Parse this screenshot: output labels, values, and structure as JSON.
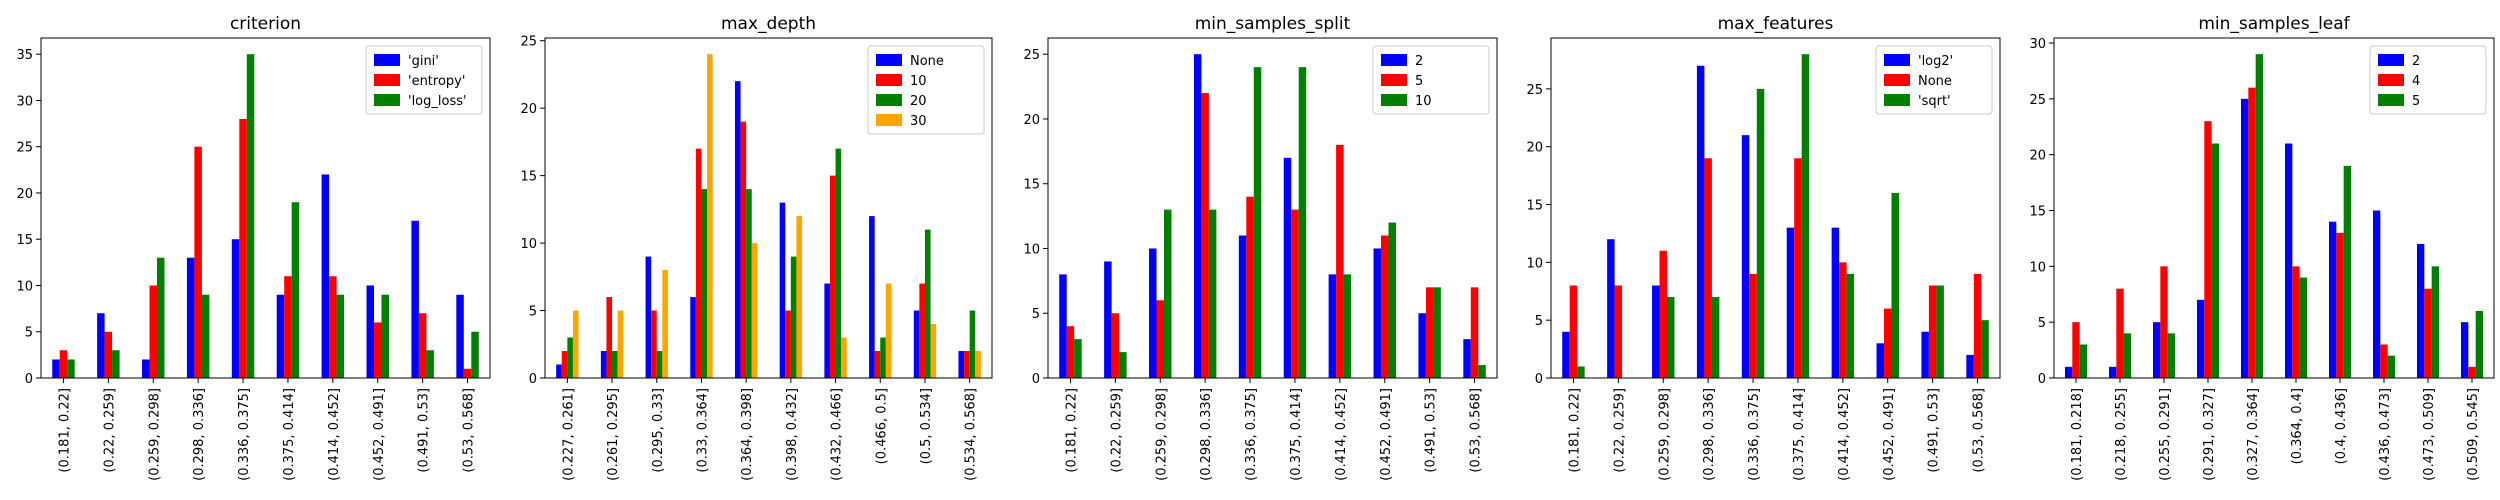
{
  "chart_data": [
    {
      "type": "bar",
      "title": "criterion",
      "xlabel": "",
      "ylabel": "",
      "ylim": [
        0,
        36.75
      ],
      "yticks": [
        0,
        5,
        10,
        15,
        20,
        25,
        30,
        35
      ],
      "categories": [
        "(0.181, 0.22]",
        "(0.22, 0.259]",
        "(0.259, 0.298]",
        "(0.298, 0.336]",
        "(0.336, 0.375]",
        "(0.375, 0.414]",
        "(0.414, 0.452]",
        "(0.452, 0.491]",
        "(0.491, 0.53]",
        "(0.53, 0.568]"
      ],
      "legend_position": "top-right",
      "series": [
        {
          "name": "'gini'",
          "color": "#0000ff",
          "values": [
            2,
            7,
            2,
            13,
            15,
            9,
            22,
            10,
            17,
            9
          ]
        },
        {
          "name": "'entropy'",
          "color": "#ff0000",
          "values": [
            3,
            5,
            10,
            25,
            28,
            11,
            11,
            6,
            7,
            1
          ]
        },
        {
          "name": "'log_loss'",
          "color": "#008000",
          "values": [
            2,
            3,
            13,
            9,
            35,
            19,
            9,
            9,
            3,
            5
          ]
        }
      ]
    },
    {
      "type": "bar",
      "title": "max_depth",
      "xlabel": "",
      "ylabel": "",
      "ylim": [
        0,
        25.2
      ],
      "yticks": [
        0,
        5,
        10,
        15,
        20,
        25
      ],
      "categories": [
        "(0.227, 0.261]",
        "(0.261, 0.295]",
        "(0.295, 0.33]",
        "(0.33, 0.364]",
        "(0.364, 0.398]",
        "(0.398, 0.432]",
        "(0.432, 0.466]",
        "(0.466, 0.5]",
        "(0.5, 0.534]",
        "(0.534, 0.568]"
      ],
      "legend_position": "top-right",
      "series": [
        {
          "name": "None",
          "color": "#0000ff",
          "values": [
            1,
            2,
            9,
            6,
            22,
            13,
            7,
            12,
            5,
            2
          ]
        },
        {
          "name": "10",
          "color": "#ff0000",
          "values": [
            2,
            6,
            5,
            17,
            19,
            5,
            15,
            2,
            7,
            2
          ]
        },
        {
          "name": "20",
          "color": "#008000",
          "values": [
            3,
            2,
            2,
            14,
            14,
            9,
            17,
            3,
            11,
            5
          ]
        },
        {
          "name": "30",
          "color": "#ffa500",
          "values": [
            5,
            5,
            8,
            24,
            10,
            12,
            3,
            7,
            4,
            2
          ]
        }
      ]
    },
    {
      "type": "bar",
      "title": "min_samples_split",
      "xlabel": "",
      "ylabel": "",
      "ylim": [
        0,
        26.25
      ],
      "yticks": [
        0,
        5,
        10,
        15,
        20,
        25
      ],
      "categories": [
        "(0.181, 0.22]",
        "(0.22, 0.259]",
        "(0.259, 0.298]",
        "(0.298, 0.336]",
        "(0.336, 0.375]",
        "(0.375, 0.414]",
        "(0.414, 0.452]",
        "(0.452, 0.491]",
        "(0.491, 0.53]",
        "(0.53, 0.568]"
      ],
      "legend_position": "top-right",
      "series": [
        {
          "name": "2",
          "color": "#0000ff",
          "values": [
            8,
            9,
            10,
            25,
            11,
            17,
            8,
            10,
            5,
            3
          ]
        },
        {
          "name": "5",
          "color": "#ff0000",
          "values": [
            4,
            5,
            6,
            22,
            14,
            13,
            18,
            11,
            7,
            7
          ]
        },
        {
          "name": "10",
          "color": "#008000",
          "values": [
            3,
            2,
            13,
            13,
            24,
            24,
            8,
            12,
            7,
            1
          ]
        }
      ]
    },
    {
      "type": "bar",
      "title": "max_features",
      "xlabel": "",
      "ylabel": "",
      "ylim": [
        0,
        29.4
      ],
      "yticks": [
        0,
        5,
        10,
        15,
        20,
        25
      ],
      "categories": [
        "(0.181, 0.22]",
        "(0.22, 0.259]",
        "(0.259, 0.298]",
        "(0.298, 0.336]",
        "(0.336, 0.375]",
        "(0.375, 0.414]",
        "(0.414, 0.452]",
        "(0.452, 0.491]",
        "(0.491, 0.53]",
        "(0.53, 0.568]"
      ],
      "legend_position": "top-right",
      "series": [
        {
          "name": "'log2'",
          "color": "#0000ff",
          "values": [
            4,
            12,
            8,
            27,
            21,
            13,
            13,
            3,
            4,
            2
          ]
        },
        {
          "name": "None",
          "color": "#ff0000",
          "values": [
            8,
            8,
            11,
            19,
            9,
            19,
            10,
            6,
            8,
            9
          ]
        },
        {
          "name": "'sqrt'",
          "color": "#008000",
          "values": [
            1,
            0,
            7,
            7,
            25,
            28,
            9,
            16,
            8,
            5
          ]
        }
      ]
    },
    {
      "type": "bar",
      "title": "min_samples_leaf",
      "xlabel": "",
      "ylabel": "",
      "ylim": [
        0,
        30.45
      ],
      "yticks": [
        0,
        5,
        10,
        15,
        20,
        25,
        30
      ],
      "categories": [
        "(0.181, 0.218]",
        "(0.218, 0.255]",
        "(0.255, 0.291]",
        "(0.291, 0.327]",
        "(0.327, 0.364]",
        "(0.364, 0.4]",
        "(0.4, 0.436]",
        "(0.436, 0.473]",
        "(0.473, 0.509]",
        "(0.509, 0.545]"
      ],
      "legend_position": "top-right",
      "series": [
        {
          "name": "2",
          "color": "#0000ff",
          "values": [
            1,
            1,
            5,
            7,
            25,
            21,
            14,
            15,
            12,
            5
          ]
        },
        {
          "name": "4",
          "color": "#ff0000",
          "values": [
            5,
            8,
            10,
            23,
            26,
            10,
            13,
            3,
            8,
            1
          ]
        },
        {
          "name": "5",
          "color": "#008000",
          "values": [
            3,
            4,
            4,
            21,
            29,
            9,
            19,
            2,
            10,
            6
          ]
        }
      ]
    }
  ]
}
